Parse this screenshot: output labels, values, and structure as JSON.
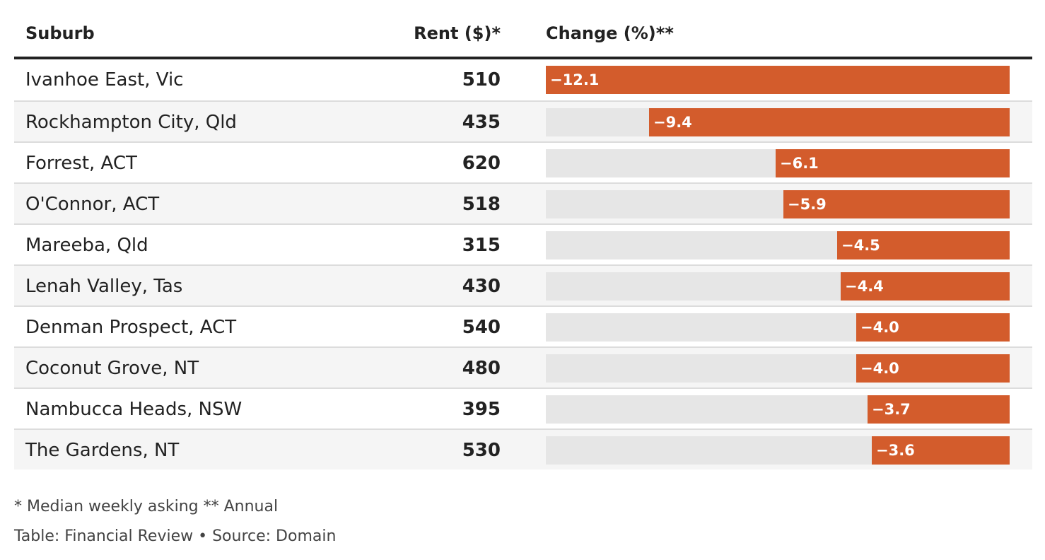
{
  "columns": {
    "suburb": "Suburb",
    "rent": "Rent ($)*",
    "change": "Change (%)**"
  },
  "chart_data": {
    "type": "table",
    "title": "",
    "value_domain": [
      -12.1,
      0
    ],
    "columns": [
      "Suburb",
      "Rent ($)*",
      "Change (%)**"
    ],
    "rows": [
      {
        "suburb": "Ivanhoe East, Vic",
        "rent": "510",
        "change": -12.1,
        "change_label": "−12.1"
      },
      {
        "suburb": "Rockhampton City, Qld",
        "rent": "435",
        "change": -9.4,
        "change_label": "−9.4"
      },
      {
        "suburb": "Forrest, ACT",
        "rent": "620",
        "change": -6.1,
        "change_label": "−6.1"
      },
      {
        "suburb": "O'Connor, ACT",
        "rent": "518",
        "change": -5.9,
        "change_label": "−5.9"
      },
      {
        "suburb": "Mareeba, Qld",
        "rent": "315",
        "change": -4.5,
        "change_label": "−4.5"
      },
      {
        "suburb": "Lenah Valley, Tas",
        "rent": "430",
        "change": -4.4,
        "change_label": "−4.4"
      },
      {
        "suburb": "Denman Prospect, ACT",
        "rent": "540",
        "change": -4.0,
        "change_label": "−4.0"
      },
      {
        "suburb": "Coconut Grove, NT",
        "rent": "480",
        "change": -4.0,
        "change_label": "−4.0"
      },
      {
        "suburb": "Nambucca Heads, NSW",
        "rent": "395",
        "change": -3.7,
        "change_label": "−3.7"
      },
      {
        "suburb": "The Gardens, NT",
        "rent": "530",
        "change": -3.6,
        "change_label": "−3.6"
      }
    ]
  },
  "colors": {
    "bar": "#d35c2c",
    "track": "#e6e6e6"
  },
  "footer": {
    "note": "* Median weekly asking ** Annual",
    "credit": "Table: Financial Review • Source: Domain"
  }
}
